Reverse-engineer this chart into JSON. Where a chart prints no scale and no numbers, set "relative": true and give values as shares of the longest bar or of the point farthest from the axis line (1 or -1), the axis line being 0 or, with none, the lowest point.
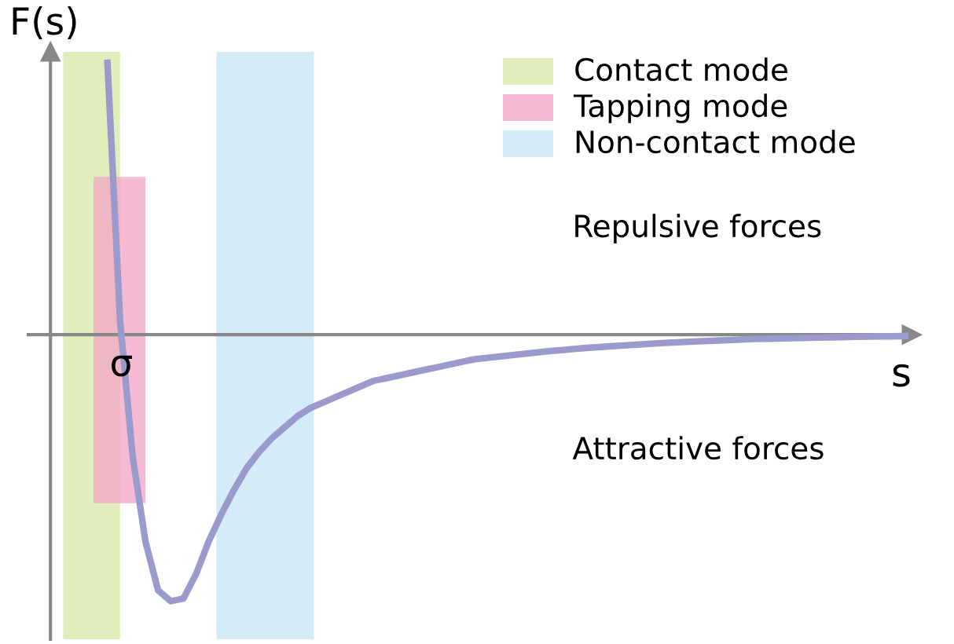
{
  "chart_data": {
    "type": "line",
    "relative": true,
    "xlabel": "s",
    "ylabel": "F(s)",
    "categories": [
      null,
      null,
      null,
      null,
      null,
      null,
      null,
      null,
      null,
      null,
      null,
      null,
      null,
      null,
      null,
      null,
      null,
      null,
      null,
      null,
      null,
      null,
      null,
      null,
      null,
      null,
      null,
      null,
      null,
      null,
      null,
      null,
      null,
      null,
      null,
      null,
      null,
      null,
      null,
      null,
      null,
      null,
      null,
      null,
      null,
      null,
      null,
      null,
      null,
      null,
      null,
      null,
      null,
      null,
      null,
      null,
      null,
      null,
      null,
      null,
      null,
      null,
      null,
      null,
      null,
      null,
      null,
      null
    ],
    "series": [
      {
        "color": "#9a9acc",
        "values": [
          null,
          null,
          null,
          null,
          1.0,
          0.05,
          -0.45,
          -0.76,
          -0.94,
          -0.98,
          -0.97,
          -0.88,
          -0.76,
          -0.66,
          -0.57,
          -0.49,
          -0.43,
          -0.38,
          -0.34,
          -0.3,
          -0.27,
          -0.25,
          -0.23,
          -0.21,
          -0.19,
          -0.17,
          -0.16,
          -0.15,
          -0.14,
          -0.13,
          -0.12,
          -0.11,
          -0.1,
          -0.09,
          -0.085,
          -0.08,
          -0.075,
          -0.07,
          -0.065,
          -0.06,
          -0.056,
          -0.052,
          -0.048,
          -0.045,
          -0.042,
          -0.039,
          -0.036,
          -0.033,
          -0.03,
          -0.028,
          -0.026,
          -0.024,
          -0.022,
          -0.02,
          -0.018,
          -0.016,
          -0.015,
          -0.014,
          -0.013,
          -0.012,
          -0.011,
          -0.01,
          -0.009,
          -0.008,
          -0.007,
          -0.006,
          -0.006,
          -0.005
        ]
      }
    ],
    "annotations": [
      "Contact mode",
      "Tapping mode",
      "Non-contact mode",
      {
        "text": "σ",
        "y": 0
      },
      "Repulsive forces",
      "Attractive forces"
    ]
  }
}
